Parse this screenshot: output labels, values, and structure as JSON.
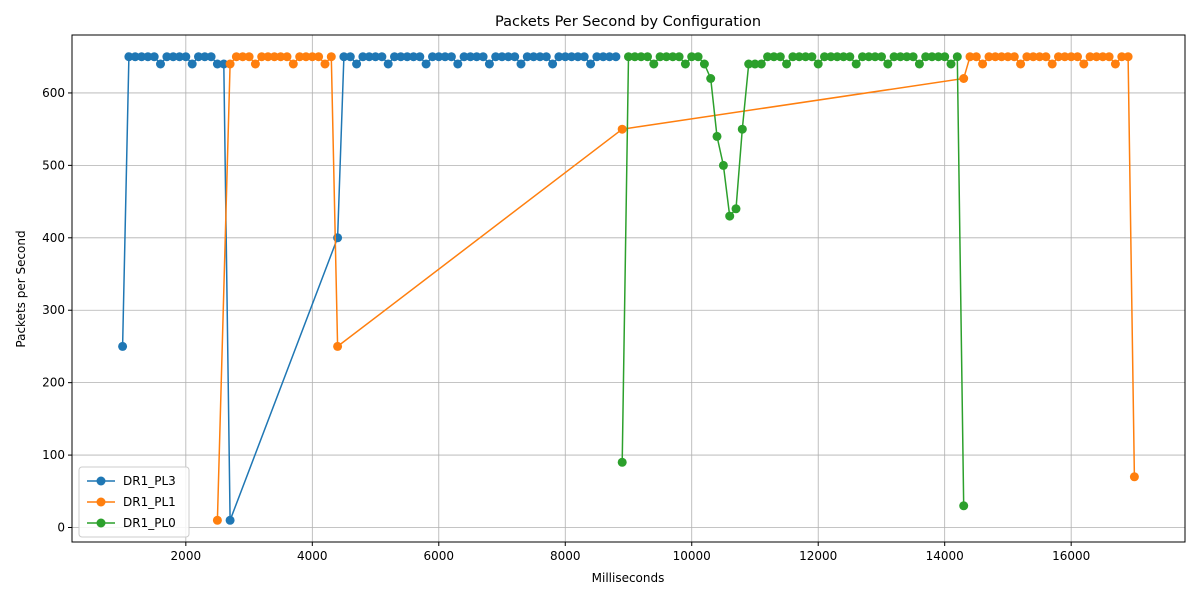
{
  "chart_data": {
    "type": "line",
    "title": "Packets Per Second by Configuration",
    "xlabel": "Milliseconds",
    "ylabel": "Packets per Second",
    "xlim": [
      200,
      17800
    ],
    "ylim": [
      -20,
      680
    ],
    "xticks": [
      2000,
      4000,
      6000,
      8000,
      10000,
      12000,
      14000,
      16000
    ],
    "yticks": [
      0,
      100,
      200,
      300,
      400,
      500,
      600
    ],
    "grid": true,
    "legend_position": "lower-left",
    "series": [
      {
        "name": "DR1_PL3",
        "color": "#1f77b4",
        "x": [
          1000,
          1100,
          1200,
          1300,
          1400,
          1500,
          1600,
          1700,
          1800,
          1900,
          2000,
          2100,
          2200,
          2300,
          2400,
          2500,
          2600,
          2700,
          4400,
          4500,
          4600,
          4700,
          4800,
          4900,
          5000,
          5100,
          5200,
          5300,
          5400,
          5500,
          5600,
          5700,
          5800,
          5900,
          6000,
          6100,
          6200,
          6300,
          6400,
          6500,
          6600,
          6700,
          6800,
          6900,
          7000,
          7100,
          7200,
          7300,
          7400,
          7500,
          7600,
          7700,
          7800,
          7900,
          8000,
          8100,
          8200,
          8300,
          8400,
          8500,
          8600,
          8700,
          8800
        ],
        "y": [
          250,
          650,
          650,
          650,
          650,
          650,
          640,
          650,
          650,
          650,
          650,
          640,
          650,
          650,
          650,
          640,
          640,
          10,
          400,
          650,
          650,
          640,
          650,
          650,
          650,
          650,
          640,
          650,
          650,
          650,
          650,
          650,
          640,
          650,
          650,
          650,
          650,
          640,
          650,
          650,
          650,
          650,
          640,
          650,
          650,
          650,
          650,
          640,
          650,
          650,
          650,
          650,
          640,
          650,
          650,
          650,
          650,
          650,
          640,
          650,
          650,
          650,
          650
        ]
      },
      {
        "name": "DR1_PL1",
        "color": "#ff7f0e",
        "x": [
          2500,
          2700,
          2800,
          2900,
          3000,
          3100,
          3200,
          3300,
          3400,
          3500,
          3600,
          3700,
          3800,
          3900,
          4000,
          4100,
          4200,
          4300,
          4400,
          8900,
          14300,
          14400,
          14500,
          14600,
          14700,
          14800,
          14900,
          15000,
          15100,
          15200,
          15300,
          15400,
          15500,
          15600,
          15700,
          15800,
          15900,
          16000,
          16100,
          16200,
          16300,
          16400,
          16500,
          16600,
          16700,
          16800,
          16900,
          17000
        ],
        "y": [
          10,
          640,
          650,
          650,
          650,
          640,
          650,
          650,
          650,
          650,
          650,
          640,
          650,
          650,
          650,
          650,
          640,
          650,
          250,
          550,
          620,
          650,
          650,
          640,
          650,
          650,
          650,
          650,
          650,
          640,
          650,
          650,
          650,
          650,
          640,
          650,
          650,
          650,
          650,
          640,
          650,
          650,
          650,
          650,
          640,
          650,
          650,
          70
        ]
      },
      {
        "name": "DR1_PL0",
        "color": "#2ca02c",
        "x": [
          8900,
          9000,
          9100,
          9200,
          9300,
          9400,
          9500,
          9600,
          9700,
          9800,
          9900,
          10000,
          10100,
          10200,
          10300,
          10400,
          10500,
          10600,
          10700,
          10800,
          10900,
          11000,
          11100,
          11200,
          11300,
          11400,
          11500,
          11600,
          11700,
          11800,
          11900,
          12000,
          12100,
          12200,
          12300,
          12400,
          12500,
          12600,
          12700,
          12800,
          12900,
          13000,
          13100,
          13200,
          13300,
          13400,
          13500,
          13600,
          13700,
          13800,
          13900,
          14000,
          14100,
          14200,
          14300
        ],
        "y": [
          90,
          650,
          650,
          650,
          650,
          640,
          650,
          650,
          650,
          650,
          640,
          650,
          650,
          640,
          620,
          540,
          500,
          430,
          440,
          550,
          640,
          640,
          640,
          650,
          650,
          650,
          640,
          650,
          650,
          650,
          650,
          640,
          650,
          650,
          650,
          650,
          650,
          640,
          650,
          650,
          650,
          650,
          640,
          650,
          650,
          650,
          650,
          640,
          650,
          650,
          650,
          650,
          640,
          650,
          30
        ]
      }
    ]
  }
}
